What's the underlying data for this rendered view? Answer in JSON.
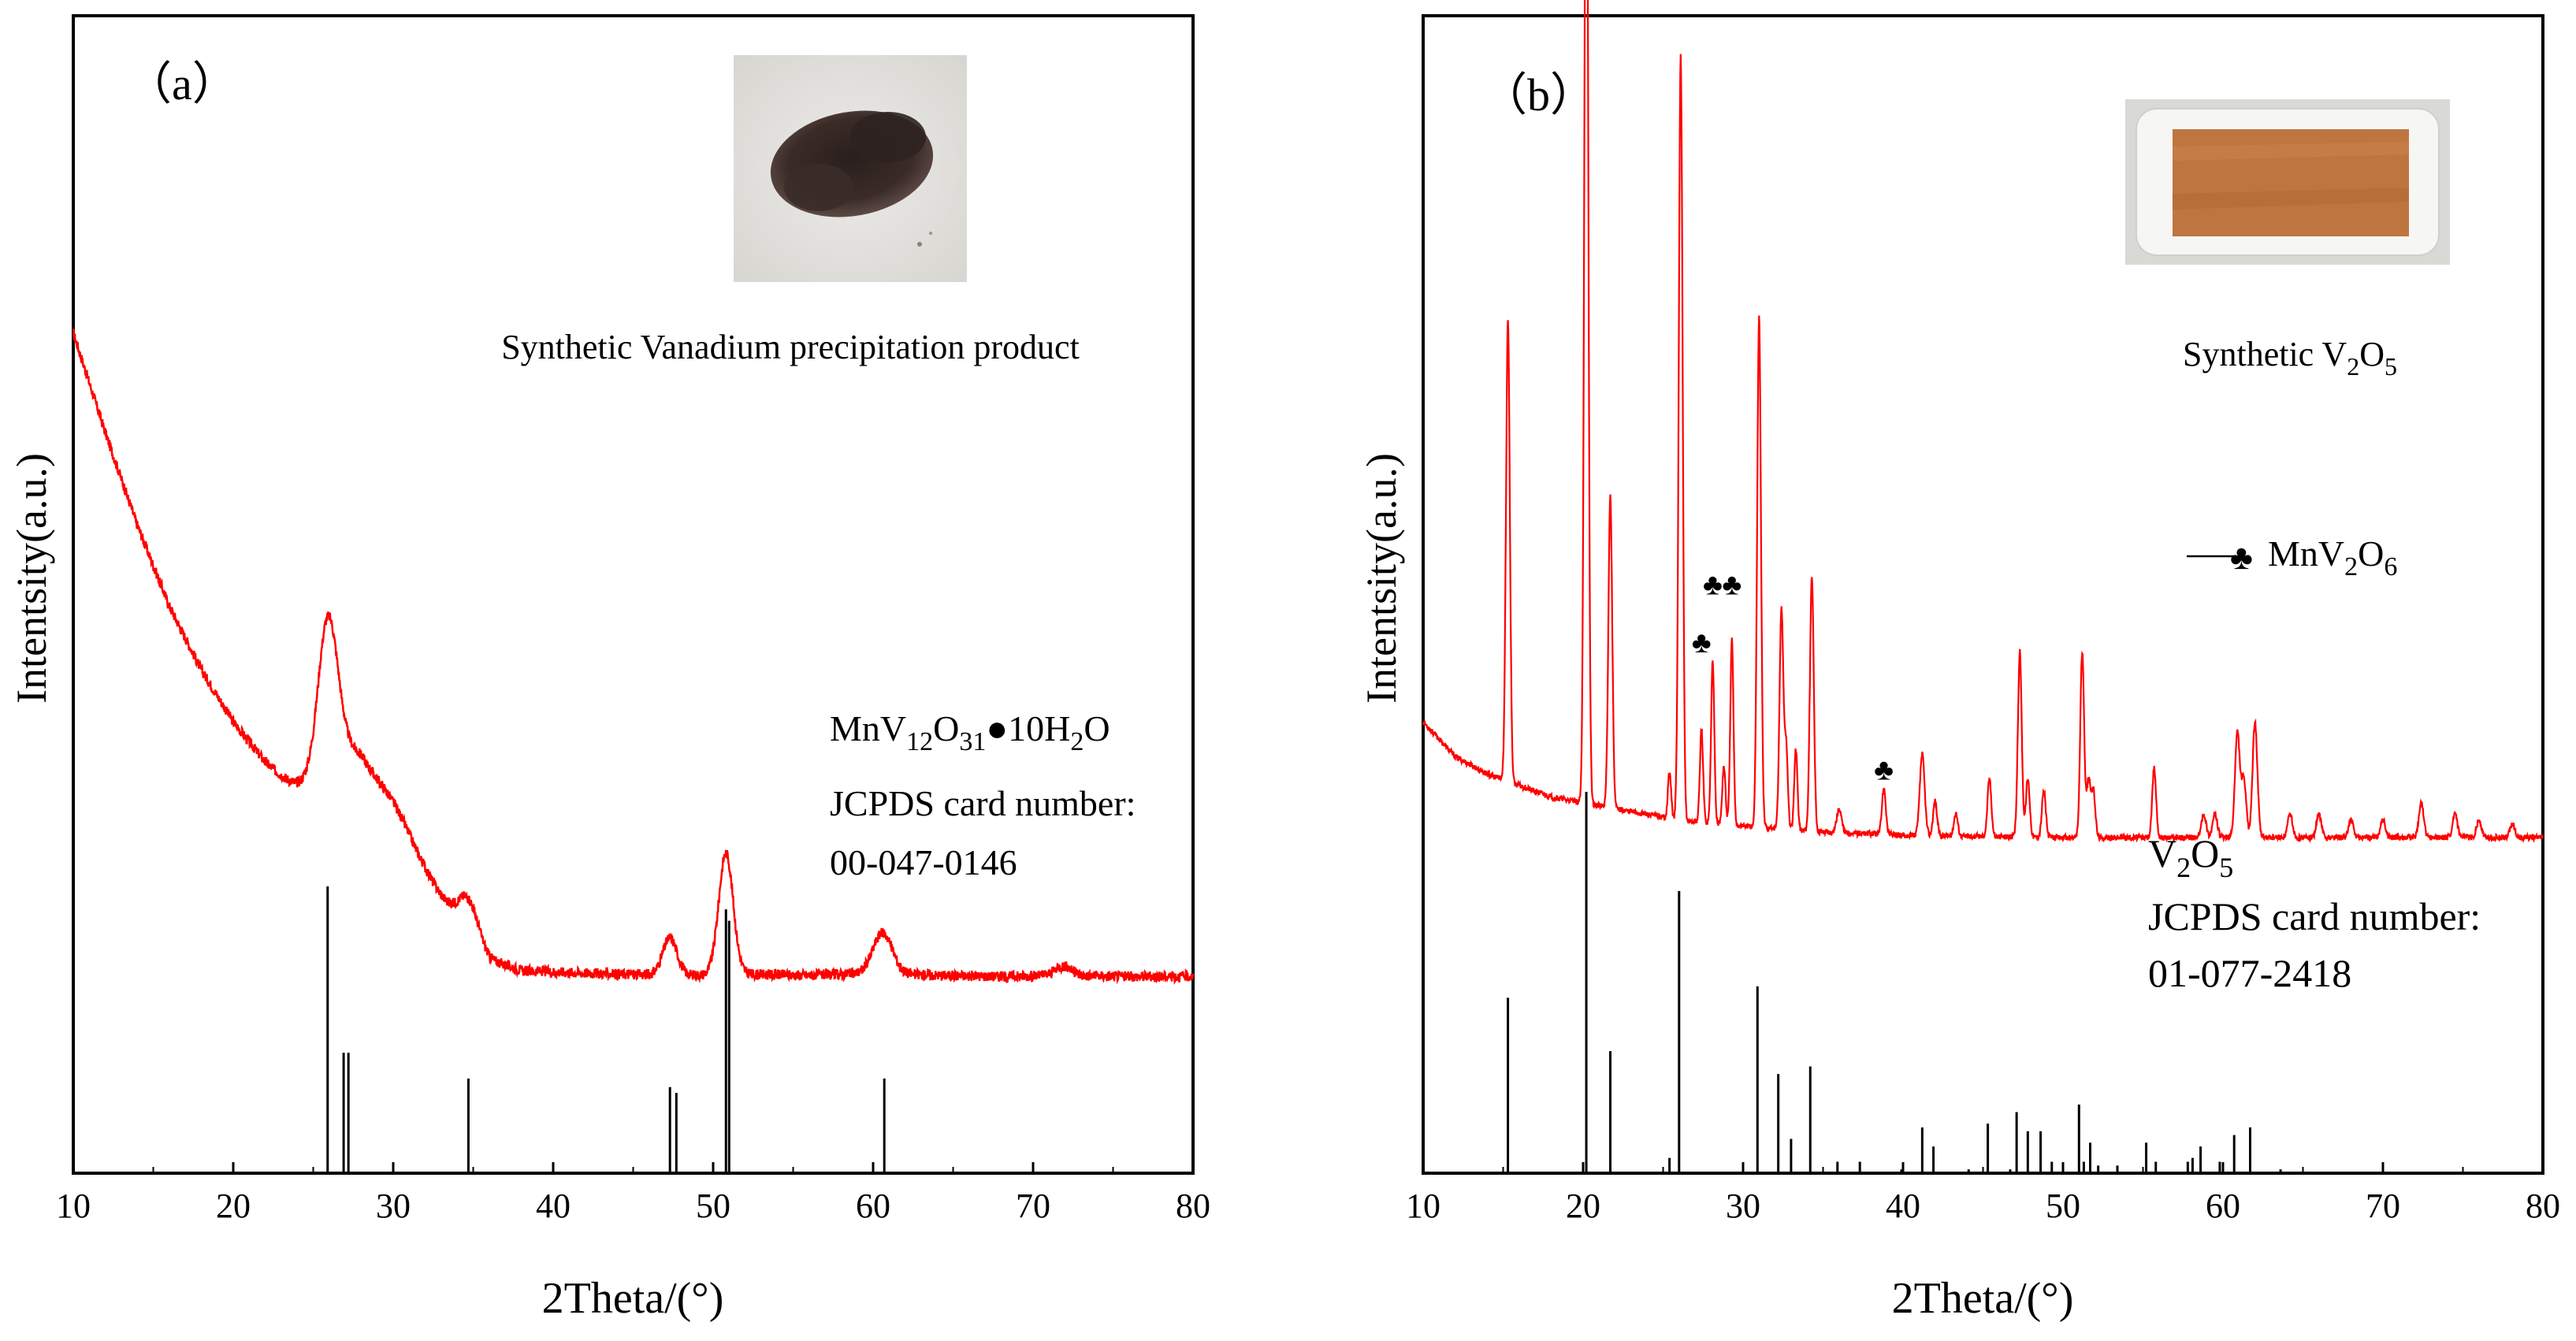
{
  "chart_data": [
    {
      "panel": "a",
      "panel_label": "（a）",
      "type": "line",
      "xlabel": "2Theta/(°)",
      "ylabel": "Intentsity(a.u.)",
      "xlim": [
        10,
        80
      ],
      "xticks": [
        10,
        20,
        30,
        40,
        50,
        60,
        70,
        80
      ],
      "yticks_shown": false,
      "colors": {
        "pattern": "#ff0000",
        "reference": "#000000"
      },
      "photo_caption": "Synthetic Vanadium precipitation product",
      "photo_description": "dark-brown-powder",
      "pattern_y_scale": [
        0,
        100
      ],
      "pattern": {
        "base": [
          [
            10,
            72.6
          ],
          [
            12,
            64
          ],
          [
            14,
            56
          ],
          [
            16,
            49
          ],
          [
            18,
            43.5
          ],
          [
            20,
            39
          ],
          [
            22,
            35.5
          ],
          [
            24,
            32.8
          ],
          [
            25,
            32.2
          ],
          [
            26.5,
            33
          ],
          [
            28,
            32.5
          ],
          [
            30,
            29
          ],
          [
            32,
            25.8
          ],
          [
            34,
            22
          ],
          [
            36,
            18.5
          ],
          [
            38,
            17.5
          ],
          [
            40,
            17.4
          ],
          [
            44,
            17.2
          ],
          [
            48,
            17.1
          ],
          [
            52,
            17.2
          ],
          [
            56,
            17.1
          ],
          [
            60,
            17.3
          ],
          [
            64,
            17.1
          ],
          [
            68,
            17
          ],
          [
            72,
            17.1
          ],
          [
            76,
            17
          ],
          [
            80,
            17
          ]
        ],
        "peaks": [
          [
            25.9,
            12,
            0.6
          ],
          [
            26.8,
            4,
            1.6
          ],
          [
            30,
            2.5,
            1.2
          ],
          [
            34.7,
            3,
            0.6
          ],
          [
            47.3,
            3.2,
            0.45
          ],
          [
            50.8,
            10.5,
            0.45
          ],
          [
            60.6,
            3.5,
            0.6
          ],
          [
            71.9,
            0.8,
            0.5
          ]
        ],
        "noise": 0.45
      },
      "reference_y_scale": [
        0,
        100
      ],
      "reference_lines": [
        [
          25.9,
          100
        ],
        [
          26.9,
          42
        ],
        [
          27.2,
          42
        ],
        [
          34.7,
          33
        ],
        [
          47.3,
          30
        ],
        [
          47.7,
          28
        ],
        [
          50.8,
          92
        ],
        [
          51.0,
          88
        ],
        [
          60.7,
          33
        ]
      ],
      "legend": {
        "formula": "MnV12O31●10H2O",
        "formula_parts": [
          "MnV",
          "12",
          "O",
          "31",
          "●10H",
          "2",
          "O"
        ],
        "card_label": "JCPDS card number:",
        "card_number": "00-047-0146"
      }
    },
    {
      "panel": "b",
      "panel_label": "（b）",
      "type": "line",
      "xlabel": "2Theta/(°)",
      "ylabel": "Intentsity(a.u.)",
      "xlim": [
        10,
        80
      ],
      "xticks": [
        10,
        20,
        30,
        40,
        50,
        60,
        70,
        80
      ],
      "yticks_shown": false,
      "colors": {
        "pattern": "#ff0000",
        "reference": "#000000"
      },
      "photo_caption_parts": [
        "Synthetic V",
        "2",
        "O",
        "5"
      ],
      "photo_description": "orange-brown-powder-in-dish",
      "pattern_y_scale": [
        0,
        100
      ],
      "pattern": {
        "base": [
          [
            10,
            39
          ],
          [
            12,
            36
          ],
          [
            14,
            34.5
          ],
          [
            16,
            33.5
          ],
          [
            18,
            32.5
          ],
          [
            20,
            32
          ],
          [
            22,
            31.5
          ],
          [
            24,
            31
          ],
          [
            26,
            30.5
          ],
          [
            30,
            30
          ],
          [
            35,
            29.5
          ],
          [
            40,
            29.2
          ],
          [
            50,
            29
          ],
          [
            60,
            29
          ],
          [
            70,
            29
          ],
          [
            80,
            29
          ]
        ],
        "peaks": [
          [
            15.3,
            40,
            0.12
          ],
          [
            20.2,
            96,
            0.12
          ],
          [
            21.7,
            27,
            0.12
          ],
          [
            25.4,
            4,
            0.1
          ],
          [
            26.1,
            66,
            0.12
          ],
          [
            27.4,
            8,
            0.1
          ],
          [
            28.1,
            14,
            0.1
          ],
          [
            28.8,
            5,
            0.1
          ],
          [
            29.3,
            16,
            0.1
          ],
          [
            31.0,
            44,
            0.12
          ],
          [
            32.4,
            19,
            0.12
          ],
          [
            32.7,
            7,
            0.1
          ],
          [
            33.3,
            7,
            0.1
          ],
          [
            34.3,
            22,
            0.12
          ],
          [
            36.0,
            2,
            0.15
          ],
          [
            38.8,
            4,
            0.12
          ],
          [
            41.2,
            7,
            0.15
          ],
          [
            42.0,
            3,
            0.12
          ],
          [
            43.3,
            2,
            0.12
          ],
          [
            45.4,
            5,
            0.12
          ],
          [
            47.3,
            16,
            0.12
          ],
          [
            47.8,
            5,
            0.12
          ],
          [
            48.8,
            4,
            0.12
          ],
          [
            51.2,
            16,
            0.12
          ],
          [
            51.6,
            5,
            0.12
          ],
          [
            51.9,
            4,
            0.12
          ],
          [
            55.7,
            6,
            0.12
          ],
          [
            58.8,
            2,
            0.15
          ],
          [
            59.5,
            2,
            0.15
          ],
          [
            60.9,
            9,
            0.15
          ],
          [
            61.3,
            5,
            0.15
          ],
          [
            62.0,
            10,
            0.15
          ],
          [
            64.2,
            2,
            0.15
          ],
          [
            66.0,
            2,
            0.15
          ],
          [
            68.0,
            1.5,
            0.15
          ],
          [
            70.0,
            1.5,
            0.15
          ],
          [
            72.4,
            3,
            0.15
          ],
          [
            74.5,
            2,
            0.15
          ],
          [
            76.0,
            1.5,
            0.15
          ],
          [
            78.1,
            1.2,
            0.15
          ]
        ],
        "noise": 0.25
      },
      "markers": {
        "symbol": "♣",
        "positions": [
          [
            27.4,
            45
          ],
          [
            28.1,
            50
          ],
          [
            29.3,
            50
          ],
          [
            38.8,
            34
          ]
        ]
      },
      "reference_y_scale": [
        0,
        100
      ],
      "reference_lines": [
        [
          15.3,
          46
        ],
        [
          20.2,
          100
        ],
        [
          21.7,
          32
        ],
        [
          25.4,
          4
        ],
        [
          26.0,
          74
        ],
        [
          30.9,
          49
        ],
        [
          32.2,
          26
        ],
        [
          33.0,
          9
        ],
        [
          34.2,
          28
        ],
        [
          35.9,
          3
        ],
        [
          37.3,
          3
        ],
        [
          39.9,
          1
        ],
        [
          41.2,
          12
        ],
        [
          41.9,
          7
        ],
        [
          44.1,
          1
        ],
        [
          45.3,
          13
        ],
        [
          46.7,
          1
        ],
        [
          47.1,
          16
        ],
        [
          47.8,
          11
        ],
        [
          48.6,
          11
        ],
        [
          49.3,
          3
        ],
        [
          51.0,
          18
        ],
        [
          51.3,
          3
        ],
        [
          51.7,
          8
        ],
        [
          52.2,
          2
        ],
        [
          53.4,
          2
        ],
        [
          55.2,
          8
        ],
        [
          55.8,
          3
        ],
        [
          57.8,
          3
        ],
        [
          58.1,
          4
        ],
        [
          58.6,
          7
        ],
        [
          59.8,
          3
        ],
        [
          60.7,
          10
        ],
        [
          61.7,
          12
        ],
        [
          63.6,
          1
        ]
      ],
      "legend": {
        "marker_label_parts": [
          "MnV",
          "2",
          "O",
          "6"
        ],
        "ref_formula_parts": [
          "V",
          "2",
          "O",
          "5"
        ],
        "card_label": "JCPDS card number:",
        "card_number": "01-077-2418"
      }
    }
  ]
}
